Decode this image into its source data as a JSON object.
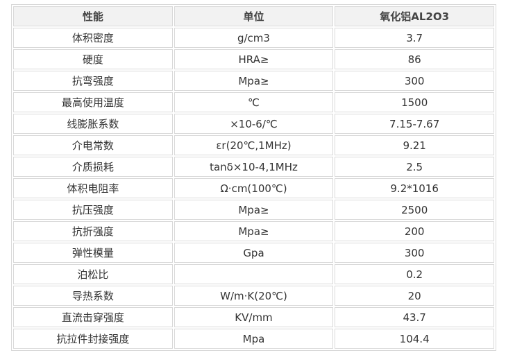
{
  "table": {
    "header": [
      "性能",
      "单位",
      "氧化铝AL2O3"
    ],
    "rows": [
      [
        "体积密度",
        "g/cm3",
        "3.7"
      ],
      [
        "硬度",
        "HRA≥",
        "86"
      ],
      [
        "抗弯强度",
        "Mpa≥",
        "300"
      ],
      [
        "最高使用温度",
        "℃",
        "1500"
      ],
      [
        "线膨胀系数",
        "×10-6/℃",
        "7.15-7.67"
      ],
      [
        "介电常数",
        "εr(20℃,1MHz)",
        "9.21"
      ],
      [
        "介质损耗",
        "tanδ×10-4,1MHz",
        "2.5"
      ],
      [
        "体积电阻率",
        "Ω·cm(100℃)",
        "9.2*1016"
      ],
      [
        "抗压强度",
        "Mpa≥",
        "2500"
      ],
      [
        "抗折强度",
        "Mpa≥",
        "200"
      ],
      [
        "弹性模量",
        "Gpa",
        "300"
      ],
      [
        "泊松比",
        null,
        "0.2"
      ],
      [
        "导热系数",
        "W/m·K(20℃)",
        "20"
      ],
      [
        "直流击穿强度",
        "KV/mm",
        "43.7"
      ],
      [
        "抗拉件封接强度",
        "Mpa",
        "104.4"
      ]
    ]
  }
}
